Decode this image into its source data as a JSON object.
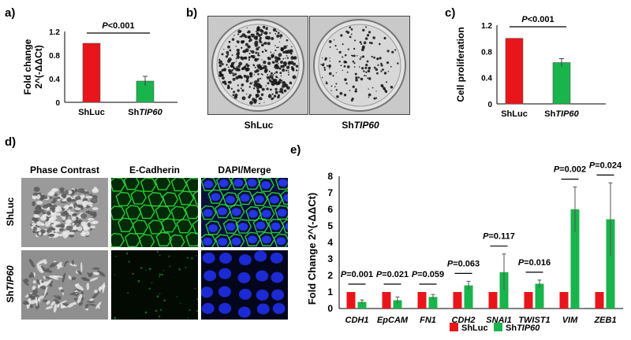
{
  "panel_letters": [
    "a)",
    "b)",
    "c)",
    "d)",
    "e)"
  ],
  "colors": {
    "shluc": "#e8151b",
    "shtip60": "#19b44b",
    "black": "#000000"
  },
  "chart_data": [
    {
      "panel": "a)",
      "type": "bar",
      "categories": [
        {
          "prefix": "Sh",
          "name": "Luc",
          "italic": false
        },
        {
          "prefix": "Sh",
          "name": "TIP60",
          "italic": true
        }
      ],
      "values": [
        1.0,
        0.36
      ],
      "errors": [
        0,
        0.08
      ],
      "ylabel_lines": [
        "Fold change",
        "2^(-ΔΔCt)"
      ],
      "ylim": [
        0,
        1.2
      ],
      "yticks": [
        "0",
        "0.4",
        "0.8",
        "1.2"
      ],
      "ytick_values": [
        0,
        0.4,
        0.8,
        1.2
      ],
      "pvalue": {
        "p": "P",
        "rest": "<0.001"
      }
    },
    {
      "panel": "c)",
      "type": "bar",
      "categories": [
        {
          "prefix": "Sh",
          "name": "Luc",
          "italic": false
        },
        {
          "prefix": "Sh",
          "name": "TIP60",
          "italic": true
        }
      ],
      "values": [
        1.0,
        0.63
      ],
      "errors": [
        0,
        0.06
      ],
      "ylabel_lines": [
        "Cell proliferation"
      ],
      "ylim": [
        0,
        1.2
      ],
      "yticks": [
        "0",
        "0.4",
        "0.8",
        "1.2"
      ],
      "ytick_values": [
        0,
        0.4,
        0.8,
        1.2
      ],
      "pvalue": {
        "p": "P",
        "rest": "<0.001"
      }
    },
    {
      "panel": "e)",
      "type": "bar",
      "categories": [
        "CDH1",
        "EpCAM",
        "FN1",
        "CDH2",
        "SNAI1",
        "TWIST1",
        "VIM",
        "ZEB1"
      ],
      "series": [
        {
          "name": "ShLuc",
          "name_prefix": "ShLuc",
          "name_italic": "",
          "values": [
            1,
            1,
            1,
            1,
            1,
            1,
            1,
            1
          ],
          "errors": [
            0,
            0,
            0,
            0,
            0,
            0,
            0,
            0
          ]
        },
        {
          "name": "ShTIP60",
          "name_prefix": "Sh",
          "name_italic": "TIP60",
          "values": [
            0.4,
            0.5,
            0.7,
            1.4,
            2.2,
            1.5,
            6.0,
            5.4
          ],
          "errors": [
            0.12,
            0.2,
            0.15,
            0.25,
            1.1,
            0.22,
            1.35,
            2.2
          ]
        }
      ],
      "ylabel": "Fold Change  2^(-ΔΔCt)",
      "ylim": [
        0,
        8
      ],
      "yticks": [
        "0",
        "1",
        "2",
        "3",
        "4",
        "5",
        "6",
        "7",
        "8"
      ],
      "ytick_values": [
        0,
        1,
        2,
        3,
        4,
        5,
        6,
        7,
        8
      ],
      "pvalues": [
        {
          "p": "P",
          "rest": "=0.001"
        },
        {
          "p": "P",
          "rest": "=0.021"
        },
        {
          "p": "P",
          "rest": "=0.059"
        },
        {
          "p": "P",
          "rest": "=0.063"
        },
        {
          "p": "P",
          "rest": "=0.117"
        },
        {
          "p": "P",
          "rest": "=0.016"
        },
        {
          "p": "P",
          "rest": "=0.002"
        },
        {
          "p": "P",
          "rest": "=0.024"
        }
      ],
      "legend_position": "bottom"
    }
  ],
  "panel_b": {
    "labels": [
      {
        "prefix": "Sh",
        "name": "Luc",
        "italic": false
      },
      {
        "prefix": "Sh",
        "name": "TIP60",
        "italic": true
      }
    ]
  },
  "panel_d": {
    "column_titles": [
      "Phase Contrast",
      "E-Cadherin",
      "DAPI/Merge"
    ],
    "row_labels": [
      {
        "prefix": "Sh",
        "name": "Luc",
        "italic": false
      },
      {
        "prefix": "Sh",
        "name": "TIP60",
        "italic": true
      }
    ]
  }
}
